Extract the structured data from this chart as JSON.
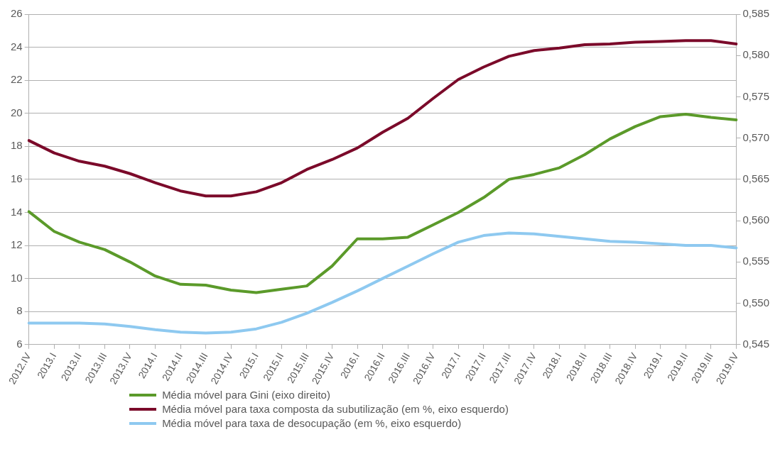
{
  "chart_data": {
    "type": "line",
    "categories": [
      "2012.IV",
      "2013.I",
      "2013.II",
      "2013.III",
      "2013.IV",
      "2014.I",
      "2014.II",
      "2014.III",
      "2014.IV",
      "2015.I",
      "2015.II",
      "2015.III",
      "2015.IV",
      "2016.I",
      "2016.II",
      "2016.III",
      "2016.IV",
      "2017.I",
      "2017.II",
      "2017.III",
      "2017.IV",
      "2018.I",
      "2018.II",
      "2018.III",
      "2018.IV",
      "2019.I",
      "2019.II",
      "2019.III",
      "2019.IV"
    ],
    "series": [
      {
        "name": "Média móvel para Gini (eixo direito)",
        "color": "#5b9a2a",
        "axis": "y2",
        "values": [
          0.5611,
          0.5587,
          0.5574,
          0.5565,
          0.555,
          0.5533,
          0.5523,
          0.5522,
          0.5516,
          0.5513,
          0.5517,
          0.5521,
          0.5545,
          0.5578,
          0.5578,
          0.558,
          0.5595,
          0.561,
          0.5628,
          0.565,
          0.5656,
          0.5664,
          0.568,
          0.5699,
          0.5714,
          0.5726,
          0.5729,
          0.5725,
          0.5722
        ]
      },
      {
        "name": "Média móvel para taxa composta da subutilização (em %, eixo esquerdo)",
        "color": "#7b0a2a",
        "values": [
          18.35,
          17.6,
          17.1,
          16.8,
          16.35,
          15.8,
          15.3,
          15.0,
          15.0,
          15.25,
          15.8,
          16.6,
          17.2,
          17.9,
          18.85,
          19.7,
          20.9,
          22.05,
          22.8,
          23.45,
          23.8,
          23.95,
          24.15,
          24.2,
          24.3,
          24.35,
          24.4,
          24.4,
          24.2
        ]
      },
      {
        "name": "Média móvel para taxa de desocupação (em %, eixo esquerdo)",
        "color": "#8ec9f0",
        "values": [
          7.3,
          7.3,
          7.3,
          7.25,
          7.1,
          6.9,
          6.75,
          6.7,
          6.75,
          6.95,
          7.35,
          7.9,
          8.55,
          9.25,
          10.0,
          10.75,
          11.5,
          12.2,
          12.6,
          12.75,
          12.7,
          12.55,
          12.4,
          12.25,
          12.2,
          12.1,
          12.0,
          12.0,
          11.85
        ]
      }
    ],
    "ylim": [
      6,
      26
    ],
    "yticks": [
      6,
      8,
      10,
      12,
      14,
      16,
      18,
      20,
      22,
      24,
      26
    ],
    "y2lim": [
      0.545,
      0.585
    ],
    "y2ticks": [
      {
        "value": 0.545,
        "label": "0,545"
      },
      {
        "value": 0.55,
        "label": "0,550"
      },
      {
        "value": 0.555,
        "label": "0,555"
      },
      {
        "value": 0.56,
        "label": "0,560"
      },
      {
        "value": 0.565,
        "label": "0,565"
      },
      {
        "value": 0.57,
        "label": "0,570"
      },
      {
        "value": 0.575,
        "label": "0,575"
      },
      {
        "value": 0.58,
        "label": "0,580"
      },
      {
        "value": 0.585,
        "label": "0,585"
      }
    ],
    "grid": "y",
    "legend": "bottom",
    "marker": "none",
    "line_style": "solid"
  }
}
